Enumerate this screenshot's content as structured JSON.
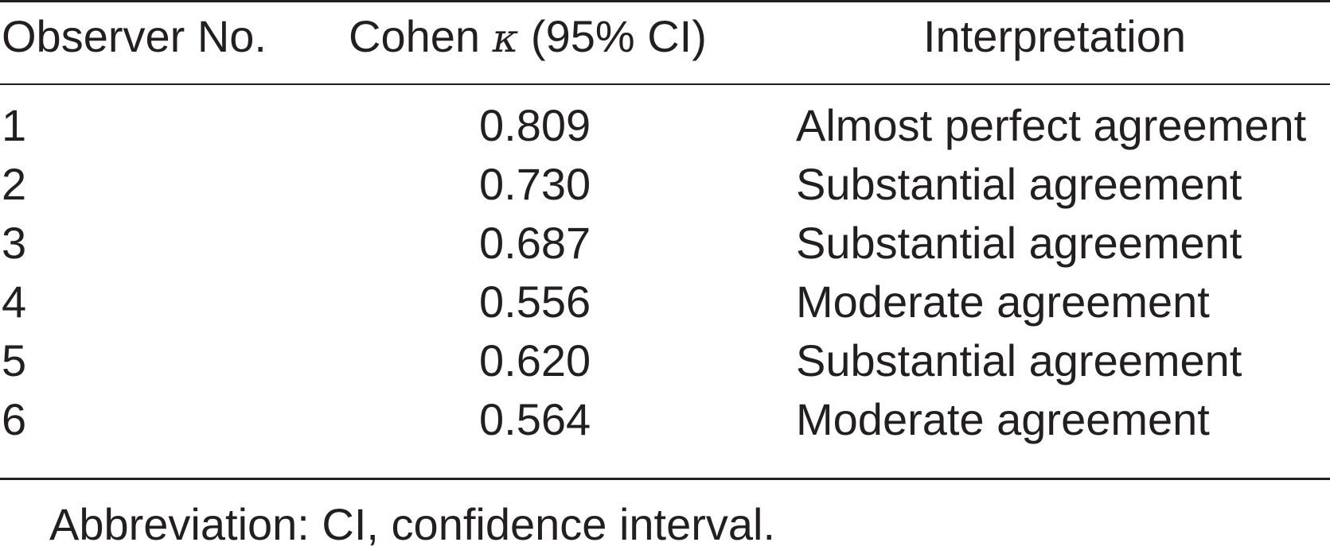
{
  "table": {
    "headers": {
      "observer": "Observer No.",
      "kappa_prefix": "Cohen ",
      "kappa_symbol": "κ",
      "kappa_suffix": " (95% CI)",
      "interpretation": "Interpretation"
    },
    "rows": [
      {
        "observer": "1",
        "kappa": "0.809",
        "interpretation": "Almost perfect agreement"
      },
      {
        "observer": "2",
        "kappa": "0.730",
        "interpretation": "Substantial agreement"
      },
      {
        "observer": "3",
        "kappa": "0.687",
        "interpretation": "Substantial agreement"
      },
      {
        "observer": "4",
        "kappa": "0.556",
        "interpretation": "Moderate agreement"
      },
      {
        "observer": "5",
        "kappa": "0.620",
        "interpretation": "Substantial agreement"
      },
      {
        "observer": "6",
        "kappa": "0.564",
        "interpretation": "Moderate agreement"
      }
    ],
    "footnote": "Abbreviation: CI, confidence interval."
  }
}
